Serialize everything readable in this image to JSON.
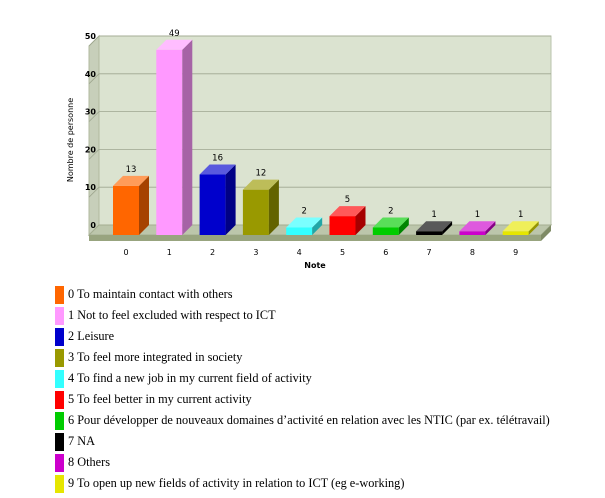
{
  "chart_data": {
    "type": "bar",
    "categories": [
      "0",
      "1",
      "2",
      "3",
      "4",
      "5",
      "6",
      "7",
      "8",
      "9"
    ],
    "values": [
      13,
      49,
      16,
      12,
      2,
      5,
      2,
      1,
      1,
      1
    ],
    "xlabel": "Note",
    "ylabel": "Nombre de personne",
    "ylim": [
      0,
      50
    ],
    "yticks": [
      0,
      10,
      20,
      30,
      40,
      50
    ],
    "grid": true,
    "legend": "bottom",
    "colors": [
      "#ff6600",
      "#ff99ff",
      "#0000cc",
      "#999900",
      "#33ffff",
      "#ff0000",
      "#00cc00",
      "#000000",
      "#cc00cc",
      "#e6e600"
    ]
  },
  "legend": [
    "0 To maintain contact with others",
    "1 Not to feel excluded with respect to ICT",
    "2 Leisure",
    "3 To feel more integrated in society",
    "4 To find a new job in my current field of activity",
    "5 To feel better in my current activity",
    "6 Pour développer de nouveaux domaines d’activité en relation avec les NTIC (par ex. télétravail)",
    "7 NA",
    "8 Others",
    "9 To open up new fields of activity in relation to ICT (eg e-working)"
  ]
}
